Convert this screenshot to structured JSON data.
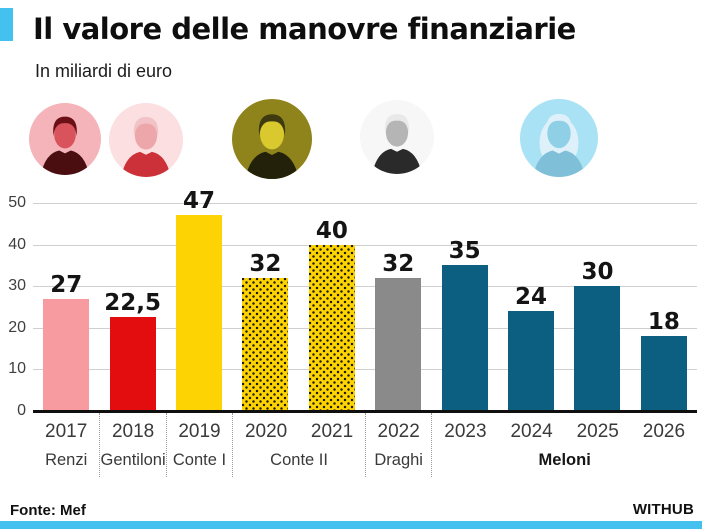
{
  "header": {
    "title": "Il valore delle manovre finanziarie",
    "subtitle": "In miliardi di euro",
    "accent_color": "#45c1f0"
  },
  "portraits": [
    {
      "id": "renzi",
      "name": "Matteo Renzi",
      "bg": "#f4b4b9",
      "skin": "#d8535b",
      "hair": "#6b1014",
      "suit": "#4a0d10",
      "long_hair": false
    },
    {
      "id": "gentiloni",
      "name": "Paolo Gentiloni",
      "bg": "#fbdfe1",
      "skin": "#eda6aa",
      "hair": "#f2c3c6",
      "suit": "#cc3038",
      "long_hair": false
    },
    {
      "id": "conte",
      "name": "Giuseppe Conte",
      "bg": "#8f831c",
      "skin": "#d9c92f",
      "hair": "#3e390e",
      "suit": "#24210a",
      "long_hair": false
    },
    {
      "id": "draghi",
      "name": "Mario Draghi",
      "bg": "#f7f7f7",
      "skin": "#b5b5b5",
      "hair": "#e9e9e9",
      "suit": "#2a2a2a",
      "long_hair": false
    },
    {
      "id": "meloni",
      "name": "Giorgia Meloni",
      "bg": "#a9e1f5",
      "skin": "#8fd0e6",
      "hair": "#def1fa",
      "suit": "#7fc0d8",
      "long_hair": true
    }
  ],
  "chart_data": {
    "type": "bar",
    "title": "Il valore delle manovre finanziarie",
    "unit_label": "In miliardi di euro",
    "categories": [
      "2017",
      "2018",
      "2019",
      "2020",
      "2021",
      "2022",
      "2023",
      "2024",
      "2025",
      "2026"
    ],
    "values": [
      27,
      22.5,
      47,
      32,
      40,
      32,
      35,
      24,
      30,
      18
    ],
    "value_labels": [
      "27",
      "22,5",
      "47",
      "32",
      "40",
      "32",
      "35",
      "24",
      "30",
      "18"
    ],
    "bar_colors": [
      "#f89ba0",
      "#e30d10",
      "#fdd303",
      "#fdd303",
      "#fdd303",
      "#8a8a8a",
      "#0d5f81",
      "#0d5f81",
      "#0d5f81",
      "#0d5f81"
    ],
    "bar_patterns": [
      "solid",
      "solid",
      "solid",
      "dots",
      "dots",
      "solid",
      "solid",
      "solid",
      "solid",
      "solid"
    ],
    "ylim": [
      0,
      50
    ],
    "yticks": [
      0,
      10,
      20,
      30,
      40,
      50
    ],
    "grid": true,
    "legend": "none",
    "groups": [
      {
        "label": "Renzi",
        "span": 1,
        "bold": false
      },
      {
        "label": "Gentiloni",
        "span": 1,
        "bold": false
      },
      {
        "label": "Conte I",
        "span": 1,
        "bold": false
      },
      {
        "label": "Conte II",
        "span": 2,
        "bold": false
      },
      {
        "label": "Draghi",
        "span": 1,
        "bold": false
      },
      {
        "label": "Meloni",
        "span": 4,
        "bold": true
      }
    ]
  },
  "footer": {
    "source": "Fonte: Mef",
    "brand": "WITHUB",
    "stripe_color": "#45c1f0"
  }
}
